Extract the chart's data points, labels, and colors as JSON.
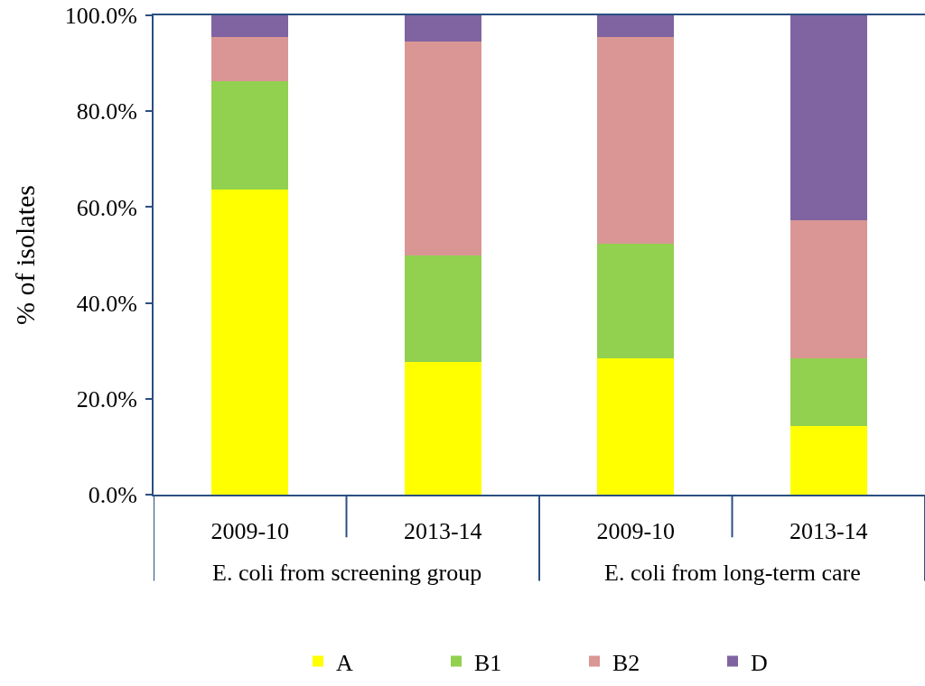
{
  "chart_data": {
    "type": "bar",
    "stacked": true,
    "categories": [
      "2009-10",
      "2013-14",
      "2009-10",
      "2013-14"
    ],
    "series": [
      {
        "name": "A",
        "color": "#ffff00",
        "values": [
          63.6,
          27.7,
          28.5,
          14.3
        ]
      },
      {
        "name": "B1",
        "color": "#92d050",
        "values": [
          22.7,
          22.3,
          23.9,
          14.2
        ]
      },
      {
        "name": "B2",
        "color": "#d99694",
        "values": [
          9.2,
          44.5,
          43.0,
          28.7
        ]
      },
      {
        "name": "D",
        "color": "#8064a2",
        "values": [
          4.5,
          5.5,
          4.6,
          42.8
        ]
      }
    ],
    "ylabel": "% of isolates",
    "ylim": [
      0,
      100
    ],
    "yticks": [
      {
        "value": 0,
        "label": "0.0%"
      },
      {
        "value": 20,
        "label": "20.0%"
      },
      {
        "value": 40,
        "label": "40.0%"
      },
      {
        "value": 60,
        "label": "60.0%"
      },
      {
        "value": 80,
        "label": "80.0%"
      },
      {
        "value": 100,
        "label": "100.0%"
      }
    ],
    "annotations": [
      "E. coli from screening group",
      "E. coli from long-term care"
    ],
    "grid": false,
    "legend": "bottom"
  }
}
